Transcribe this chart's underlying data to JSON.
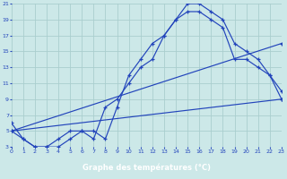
{
  "xlabel": "Graphe des températures (°C)",
  "bg_color": "#cce8e8",
  "grid_color": "#aacece",
  "line_color": "#2244bb",
  "xlabel_bg": "#2244bb",
  "xlabel_fg": "#ffffff",
  "xlim": [
    0,
    23
  ],
  "ylim": [
    3,
    21
  ],
  "xticks": [
    0,
    1,
    2,
    3,
    4,
    5,
    6,
    7,
    8,
    9,
    10,
    11,
    12,
    13,
    14,
    15,
    16,
    17,
    18,
    19,
    20,
    21,
    22,
    23
  ],
  "yticks": [
    3,
    5,
    7,
    9,
    11,
    13,
    15,
    17,
    19,
    21
  ],
  "series_hourly": {
    "x": [
      0,
      1,
      2,
      3,
      4,
      5,
      6,
      7,
      8,
      9,
      10,
      11,
      12,
      13,
      14,
      15,
      16,
      17,
      18,
      19,
      20,
      21,
      22,
      23
    ],
    "y": [
      6,
      4,
      3,
      3,
      3,
      4,
      5,
      5,
      4,
      8,
      12,
      14,
      16,
      17,
      19,
      21,
      21,
      20,
      19,
      16,
      15,
      14,
      12,
      10
    ]
  },
  "series_sparse": {
    "x": [
      0,
      1,
      2,
      3,
      4,
      5,
      6,
      7,
      8,
      9,
      10,
      11,
      12,
      13,
      14,
      15,
      16,
      17,
      18,
      19,
      20,
      21,
      22,
      23
    ],
    "y": [
      5,
      4,
      3,
      3,
      4,
      5,
      5,
      4,
      8,
      9,
      11,
      13,
      14,
      17,
      19,
      20,
      20,
      19,
      18,
      14,
      14,
      13,
      12,
      9
    ]
  },
  "series_line1": {
    "x": [
      0,
      23
    ],
    "y": [
      5,
      9
    ]
  },
  "series_line2": {
    "x": [
      0,
      23
    ],
    "y": [
      5,
      16
    ]
  }
}
